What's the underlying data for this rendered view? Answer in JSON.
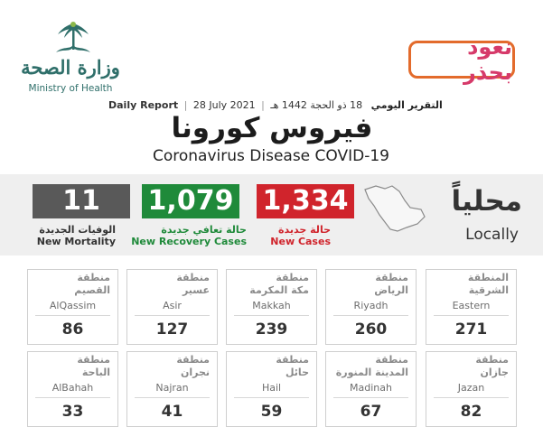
{
  "header": {
    "ministry_ar": "وزارة الصحة",
    "ministry_en": "Ministry of Health",
    "campaign": "نعود بحذر",
    "report_ar": "التقرير اليومي",
    "hijri_date": "18 ذو الحجة 1442 هـ",
    "gregorian_date": "28 July 2021",
    "report_en": "Daily Report",
    "title_ar": "فيروس كورونا",
    "title_en": "Coronavirus Disease COVID-19"
  },
  "locally": {
    "label_ar": "محلياً",
    "label_en": "Locally"
  },
  "stats": {
    "new_cases": {
      "value": "1,334",
      "label_ar": "حالة جديدة",
      "label_en": "New Cases",
      "color": "#d0242c"
    },
    "recovery": {
      "value": "1,079",
      "label_ar": "حالة تعافي جديدة",
      "label_en": "New Recovery Cases",
      "color": "#1f8a3a"
    },
    "mortality": {
      "value": "11",
      "label_ar": "الوفيات الجديدة",
      "label_en": "New Mortality",
      "color": "#595959"
    }
  },
  "regions": [
    {
      "label": "المنطقة",
      "name_ar": "الشرقية",
      "name_en": "Eastern",
      "count": "271"
    },
    {
      "label": "منطقة",
      "name_ar": "الرياض",
      "name_en": "Riyadh",
      "count": "260"
    },
    {
      "label": "منطقة",
      "name_ar": "مكة المكرمة",
      "name_en": "Makkah",
      "count": "239"
    },
    {
      "label": "منطقة",
      "name_ar": "عسير",
      "name_en": "Asir",
      "count": "127"
    },
    {
      "label": "منطقة",
      "name_ar": "القصيم",
      "name_en": "AlQassim",
      "count": "86"
    },
    {
      "label": "منطقة",
      "name_ar": "جازان",
      "name_en": "Jazan",
      "count": "82"
    },
    {
      "label": "منطقة",
      "name_ar": "المدينة المنورة",
      "name_en": "Madinah",
      "count": "67"
    },
    {
      "label": "منطقة",
      "name_ar": "حائل",
      "name_en": "Hail",
      "count": "59"
    },
    {
      "label": "منطقة",
      "name_ar": "نجران",
      "name_en": "Najran",
      "count": "41"
    },
    {
      "label": "منطقة",
      "name_ar": "الباحة",
      "name_en": "AlBahah",
      "count": "33"
    }
  ]
}
